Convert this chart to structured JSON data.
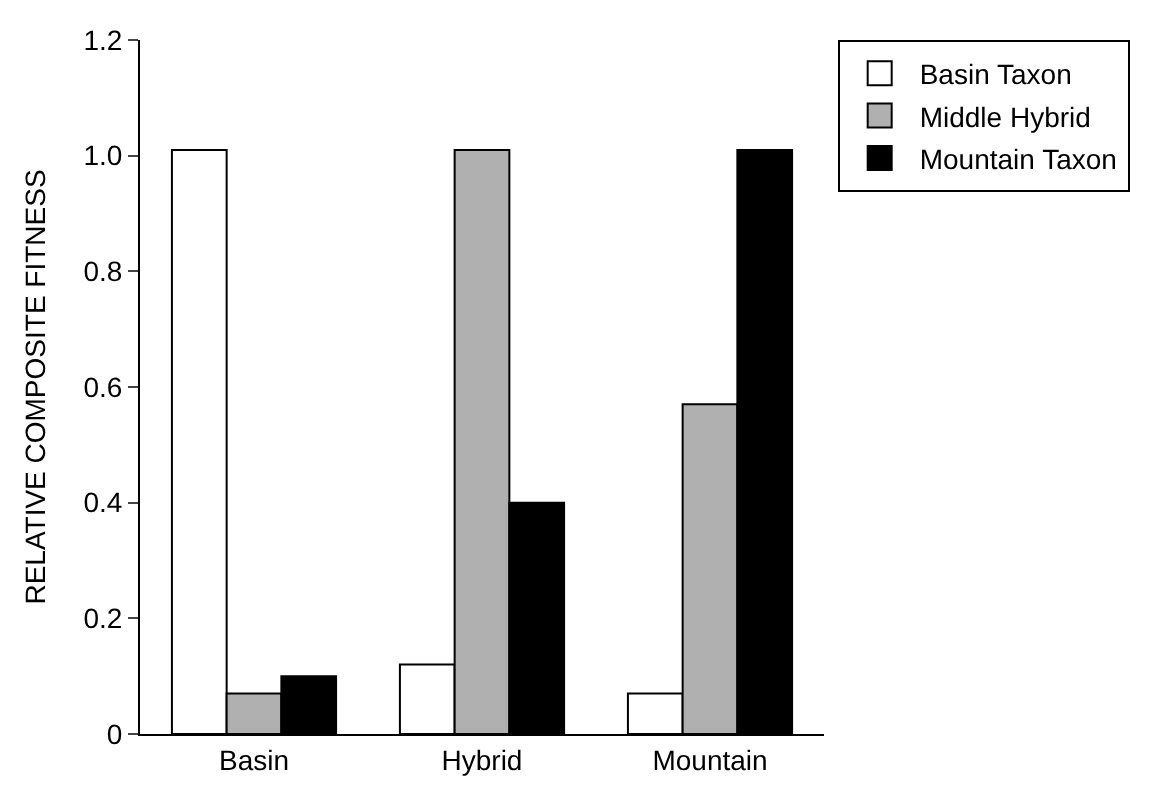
{
  "chart_data": {
    "type": "bar",
    "ylabel": "RELATIVE COMPOSITE FITNESS",
    "categories": [
      "Basin",
      "Hybrid",
      "Mountain"
    ],
    "series": [
      {
        "name": "Basin Taxon",
        "color": "#ffffff",
        "values": [
          1.01,
          0.12,
          0.07
        ]
      },
      {
        "name": "Middle Hybrid",
        "color": "#b0b0b0",
        "values": [
          0.07,
          1.01,
          0.57
        ]
      },
      {
        "name": "Mountain Taxon",
        "color": "#000000",
        "values": [
          0.1,
          0.4,
          1.01
        ]
      }
    ],
    "ylim": [
      0,
      1.2
    ],
    "yticks": [
      0,
      0.2,
      0.4,
      0.6,
      0.8,
      {
        "value": 1,
        "label": "1.0"
      },
      1.2
    ],
    "legend": "top right"
  }
}
